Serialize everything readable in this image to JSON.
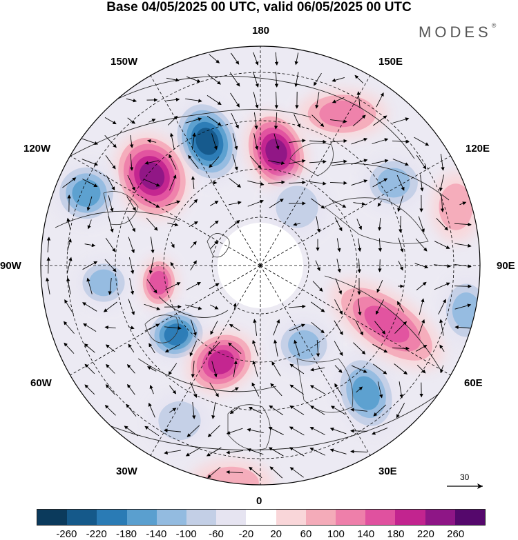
{
  "title": "Base 04/05/2025 00 UTC, valid 06/05/2025 00 UTC",
  "brand": {
    "text": "MODES",
    "mark": "®"
  },
  "longitude_labels": {
    "top": "180",
    "bottom": "0",
    "left": "90W",
    "right": "90E",
    "w150": "150W",
    "e150": "150E",
    "w120": "120W",
    "e120": "120E",
    "w60": "60W",
    "e60": "60E",
    "w30": "30W",
    "e30": "30E"
  },
  "reference_vector": {
    "label": "30",
    "icon": "arrow-right-icon"
  },
  "colorbar": {
    "colors": [
      "#0b3a5c",
      "#15598a",
      "#2a7bb5",
      "#5a9fcf",
      "#93bbe0",
      "#c3cfe6",
      "#e6e4f1",
      "#ffffff",
      "#f9d6d9",
      "#f4abb9",
      "#ee7faa",
      "#e0519f",
      "#c2248f",
      "#8e1686",
      "#55086c"
    ],
    "tick_labels": [
      "-260",
      "-220",
      "-180",
      "-140",
      "-100",
      "-60",
      "-20",
      "20",
      "60",
      "100",
      "140",
      "180",
      "220",
      "260"
    ]
  },
  "anomalies": [
    {
      "sign": "neg",
      "level": 6,
      "a": 0,
      "r": 0
    },
    {
      "sign": "pos",
      "level": 6,
      "a": 0,
      "r": 0
    },
    {
      "sign": "pos",
      "level": 6,
      "a": 0,
      "r": 0
    },
    {
      "sign": "neg",
      "level": 4,
      "a": 0,
      "r": 0
    },
    {
      "sign": "pos",
      "level": 4,
      "a": 0,
      "r": 0
    },
    {
      "sign": "neg",
      "level": 3,
      "a": 0,
      "r": 0
    },
    {
      "sign": "neg",
      "level": 5,
      "a": 0,
      "r": 0
    },
    {
      "sign": "pos",
      "level": 5,
      "a": 0,
      "r": 0
    },
    {
      "sign": "neg",
      "level": 3,
      "a": 0,
      "r": 0
    },
    {
      "sign": "neg",
      "level": 4,
      "a": 0,
      "r": 0
    },
    {
      "sign": "pos",
      "level": 3,
      "a": 0,
      "r": 0
    },
    {
      "sign": "pos",
      "level": 4,
      "a": 0,
      "r": 0
    },
    {
      "sign": "neg",
      "level": 3,
      "a": 0,
      "r": 0
    },
    {
      "sign": "neg",
      "level": 3,
      "a": 0,
      "r": 0
    },
    {
      "sign": "neg",
      "level": 2,
      "a": 0,
      "r": 0
    },
    {
      "sign": "pos",
      "level": 2,
      "a": 0,
      "r": 0
    },
    {
      "sign": "pos",
      "level": 2,
      "a": 0,
      "r": 0
    },
    {
      "sign": "neg",
      "level": 2,
      "a": 0,
      "r": 0
    }
  ]
}
